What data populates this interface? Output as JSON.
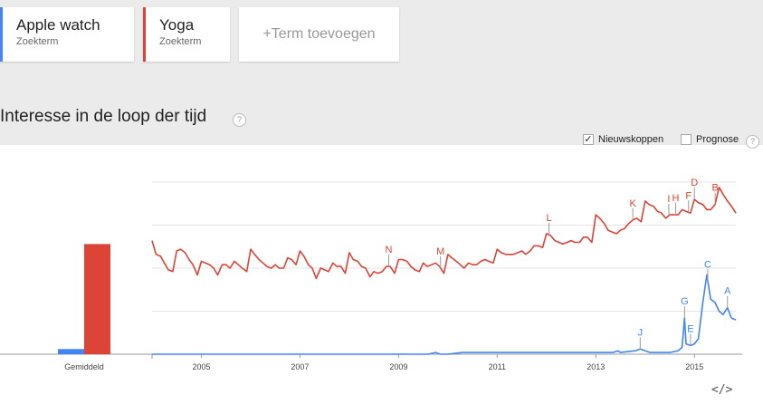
{
  "terms": [
    {
      "name": "Apple watch",
      "type": "Zoekterm",
      "color": "#4285f4"
    },
    {
      "name": "Yoga",
      "type": "Zoekterm",
      "color": "#db4437"
    }
  ],
  "add_term_label": "+Term toevoegen",
  "section_title": "Interesse in de loop der tijd",
  "help_glyph": "?",
  "options": {
    "news_label": "Nieuwskoppen",
    "news_checked": true,
    "news_check_glyph": "✓",
    "forecast_label": "Prognose",
    "forecast_checked": false
  },
  "embed_label": "</>",
  "chart_data": [
    {
      "type": "bar",
      "categories": [
        "Gemiddeld"
      ],
      "series": [
        {
          "name": "Apple watch",
          "values": [
            3
          ],
          "color": "#4285f4"
        },
        {
          "name": "Yoga",
          "values": [
            64
          ],
          "color": "#db4437"
        }
      ],
      "ylim": [
        0,
        100
      ]
    },
    {
      "type": "line",
      "x_range": [
        2004.0,
        2015.84
      ],
      "ylim": [
        0,
        100
      ],
      "x_ticks": [
        "2005",
        "2007",
        "2009",
        "2011",
        "2013",
        "2015"
      ],
      "grid": true,
      "series": [
        {
          "name": "Yoga",
          "color": "#db4437",
          "points": [
            [
              2004.0,
              66
            ],
            [
              2004.08,
              58
            ],
            [
              2004.17,
              57
            ],
            [
              2004.25,
              53
            ],
            [
              2004.33,
              49
            ],
            [
              2004.42,
              48
            ],
            [
              2004.5,
              60
            ],
            [
              2004.58,
              61
            ],
            [
              2004.67,
              59
            ],
            [
              2004.75,
              55
            ],
            [
              2004.83,
              52
            ],
            [
              2004.92,
              46
            ],
            [
              2005.0,
              54
            ],
            [
              2005.08,
              53
            ],
            [
              2005.17,
              52
            ],
            [
              2005.25,
              50
            ],
            [
              2005.33,
              46
            ],
            [
              2005.42,
              52
            ],
            [
              2005.5,
              52
            ],
            [
              2005.58,
              50
            ],
            [
              2005.67,
              54
            ],
            [
              2005.75,
              52
            ],
            [
              2005.83,
              50
            ],
            [
              2005.92,
              48
            ],
            [
              2006.0,
              61
            ],
            [
              2006.08,
              58
            ],
            [
              2006.17,
              55
            ],
            [
              2006.25,
              53
            ],
            [
              2006.33,
              51
            ],
            [
              2006.42,
              50
            ],
            [
              2006.5,
              52
            ],
            [
              2006.58,
              50
            ],
            [
              2006.67,
              50
            ],
            [
              2006.75,
              56
            ],
            [
              2006.83,
              55
            ],
            [
              2006.92,
              52
            ],
            [
              2007.0,
              60
            ],
            [
              2007.08,
              57
            ],
            [
              2007.17,
              52
            ],
            [
              2007.25,
              50
            ],
            [
              2007.33,
              44
            ],
            [
              2007.42,
              50
            ],
            [
              2007.5,
              49
            ],
            [
              2007.58,
              48
            ],
            [
              2007.67,
              53
            ],
            [
              2007.75,
              51
            ],
            [
              2007.83,
              51
            ],
            [
              2007.92,
              47
            ],
            [
              2008.0,
              59
            ],
            [
              2008.08,
              55
            ],
            [
              2008.17,
              54
            ],
            [
              2008.25,
              51
            ],
            [
              2008.33,
              50
            ],
            [
              2008.42,
              45
            ],
            [
              2008.5,
              48
            ],
            [
              2008.58,
              47
            ],
            [
              2008.67,
              48
            ],
            [
              2008.75,
              51
            ],
            [
              2008.83,
              51
            ],
            [
              2008.92,
              47
            ],
            [
              2009.0,
              55
            ],
            [
              2009.08,
              55
            ],
            [
              2009.17,
              54
            ],
            [
              2009.25,
              51
            ],
            [
              2009.33,
              49
            ],
            [
              2009.42,
              48
            ],
            [
              2009.5,
              53
            ],
            [
              2009.58,
              51
            ],
            [
              2009.67,
              52
            ],
            [
              2009.75,
              53
            ],
            [
              2009.83,
              51
            ],
            [
              2009.92,
              47
            ],
            [
              2010.0,
              58
            ],
            [
              2010.08,
              56
            ],
            [
              2010.17,
              54
            ],
            [
              2010.25,
              52
            ],
            [
              2010.33,
              50
            ],
            [
              2010.42,
              53
            ],
            [
              2010.5,
              52
            ],
            [
              2010.58,
              52
            ],
            [
              2010.67,
              54
            ],
            [
              2010.75,
              55
            ],
            [
              2010.83,
              54
            ],
            [
              2010.92,
              53
            ],
            [
              2011.0,
              61
            ],
            [
              2011.08,
              59
            ],
            [
              2011.17,
              58
            ],
            [
              2011.25,
              58
            ],
            [
              2011.33,
              58
            ],
            [
              2011.42,
              59
            ],
            [
              2011.5,
              60
            ],
            [
              2011.58,
              58
            ],
            [
              2011.67,
              60
            ],
            [
              2011.75,
              63
            ],
            [
              2011.83,
              63
            ],
            [
              2011.92,
              62
            ],
            [
              2012.0,
              70
            ],
            [
              2012.08,
              69
            ],
            [
              2012.17,
              66
            ],
            [
              2012.25,
              65
            ],
            [
              2012.33,
              64
            ],
            [
              2012.42,
              65
            ],
            [
              2012.5,
              66
            ],
            [
              2012.58,
              65
            ],
            [
              2012.67,
              65
            ],
            [
              2012.75,
              68
            ],
            [
              2012.83,
              68
            ],
            [
              2012.92,
              65
            ],
            [
              2013.0,
              81
            ],
            [
              2013.08,
              79
            ],
            [
              2013.17,
              76
            ],
            [
              2013.25,
              72
            ],
            [
              2013.33,
              71
            ],
            [
              2013.42,
              70
            ],
            [
              2013.5,
              72
            ],
            [
              2013.58,
              73
            ],
            [
              2013.67,
              76
            ],
            [
              2013.75,
              78
            ],
            [
              2013.83,
              79
            ],
            [
              2013.92,
              77
            ],
            [
              2014.0,
              89
            ],
            [
              2014.08,
              87
            ],
            [
              2014.17,
              86
            ],
            [
              2014.25,
              83
            ],
            [
              2014.33,
              82
            ],
            [
              2014.42,
              79
            ],
            [
              2014.5,
              81
            ],
            [
              2014.58,
              81
            ],
            [
              2014.67,
              81
            ],
            [
              2014.75,
              84
            ],
            [
              2014.83,
              83
            ],
            [
              2014.92,
              82
            ],
            [
              2015.0,
              90
            ],
            [
              2015.08,
              88
            ],
            [
              2015.17,
              87
            ],
            [
              2015.25,
              84
            ],
            [
              2015.33,
              84
            ],
            [
              2015.42,
              87
            ],
            [
              2015.5,
              97
            ],
            [
              2015.58,
              93
            ],
            [
              2015.67,
              89
            ],
            [
              2015.75,
              86
            ],
            [
              2015.84,
              82
            ]
          ]
        },
        {
          "name": "Apple watch",
          "color": "#4285f4",
          "points": [
            [
              2004.0,
              0
            ],
            [
              2009.6,
              0
            ],
            [
              2009.75,
              1
            ],
            [
              2009.85,
              0
            ],
            [
              2010.0,
              0
            ],
            [
              2010.3,
              1
            ],
            [
              2010.6,
              1
            ],
            [
              2011.0,
              1
            ],
            [
              2011.5,
              1
            ],
            [
              2012.0,
              1
            ],
            [
              2012.5,
              1
            ],
            [
              2013.0,
              1
            ],
            [
              2013.35,
              1
            ],
            [
              2013.45,
              2
            ],
            [
              2013.5,
              1
            ],
            [
              2013.8,
              2
            ],
            [
              2013.9,
              3
            ],
            [
              2014.0,
              2
            ],
            [
              2014.1,
              1
            ],
            [
              2014.5,
              1
            ],
            [
              2014.67,
              2
            ],
            [
              2014.75,
              4
            ],
            [
              2014.8,
              21
            ],
            [
              2014.83,
              6
            ],
            [
              2014.92,
              5
            ],
            [
              2015.0,
              6
            ],
            [
              2015.08,
              9
            ],
            [
              2015.17,
              30
            ],
            [
              2015.25,
              46
            ],
            [
              2015.33,
              32
            ],
            [
              2015.42,
              30
            ],
            [
              2015.5,
              25
            ],
            [
              2015.58,
              23
            ],
            [
              2015.67,
              27
            ],
            [
              2015.75,
              21
            ],
            [
              2015.84,
              20
            ]
          ]
        }
      ],
      "annotations": [
        {
          "label": "A",
          "series": "Apple watch",
          "x": 2015.67
        },
        {
          "label": "B",
          "series": "Yoga",
          "x": 2015.42
        },
        {
          "label": "C",
          "series": "Apple watch",
          "x": 2015.27
        },
        {
          "label": "D",
          "series": "Yoga",
          "x": 2015.0
        },
        {
          "label": "E",
          "series": "Apple watch",
          "x": 2014.92
        },
        {
          "label": "F",
          "series": "Yoga",
          "x": 2014.88
        },
        {
          "label": "G",
          "series": "Apple watch",
          "x": 2014.8
        },
        {
          "label": "H",
          "series": "Yoga",
          "x": 2014.62
        },
        {
          "label": "I",
          "series": "Yoga",
          "x": 2014.48
        },
        {
          "label": "J",
          "series": "Apple watch",
          "x": 2013.9
        },
        {
          "label": "K",
          "series": "Yoga",
          "x": 2013.75
        },
        {
          "label": "L",
          "series": "Yoga",
          "x": 2012.05
        },
        {
          "label": "M",
          "series": "Yoga",
          "x": 2009.85
        },
        {
          "label": "N",
          "series": "Yoga",
          "x": 2008.8
        }
      ]
    }
  ]
}
